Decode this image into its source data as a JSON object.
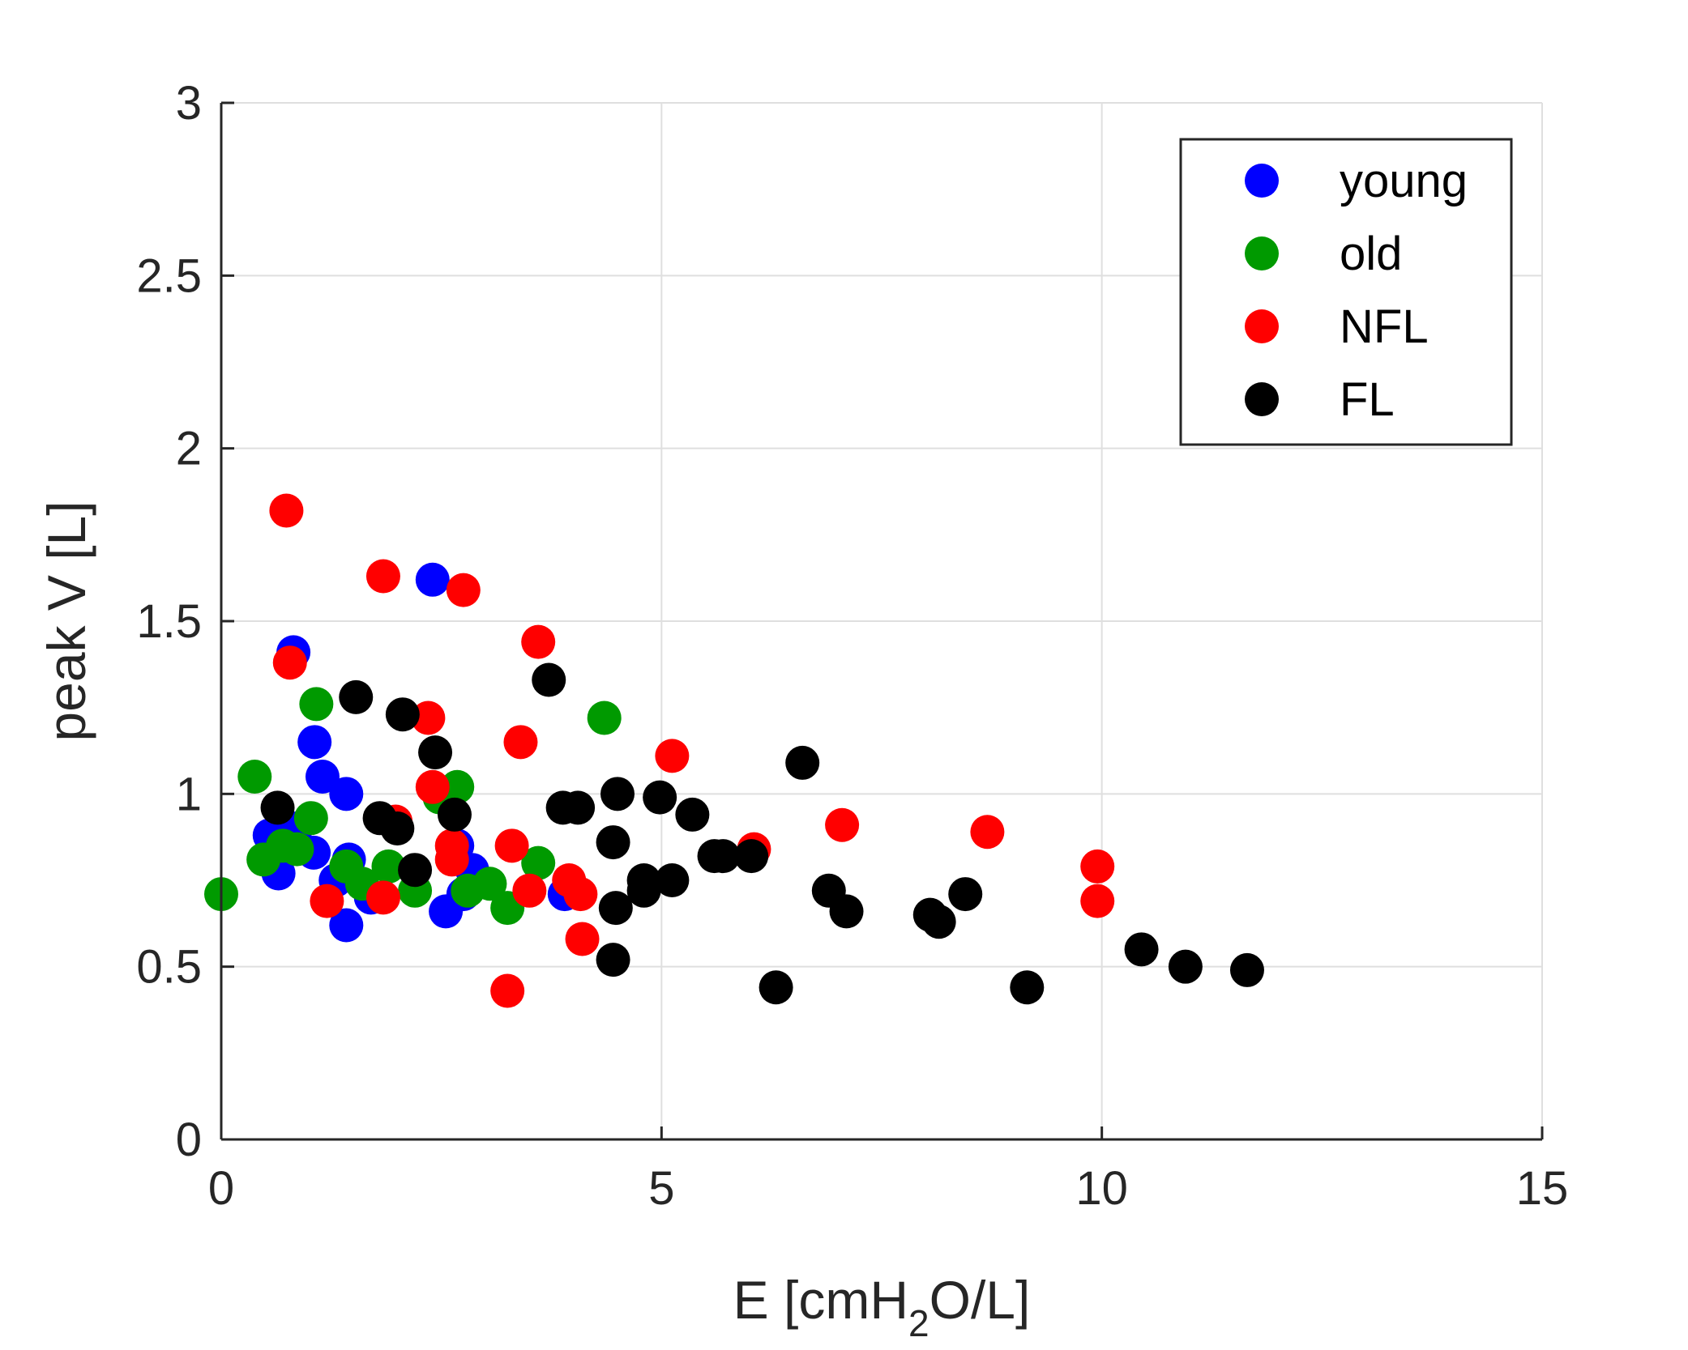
{
  "chart_data": {
    "type": "scatter",
    "xlabel": {
      "main": "E [cmH",
      "sub": "2",
      "tail": "O/L]"
    },
    "ylabel": "peak V [L]",
    "xlim": [
      0,
      15
    ],
    "ylim": [
      0,
      3
    ],
    "xticks": [
      0,
      5,
      10,
      15
    ],
    "xtick_labels": [
      "0",
      "5",
      "10",
      "15"
    ],
    "yticks": [
      0,
      0.5,
      1,
      1.5,
      2,
      2.5,
      3
    ],
    "ytick_labels": [
      "0",
      "0.5",
      "1",
      "1.5",
      "2",
      "2.5",
      "3"
    ],
    "grid": true,
    "legend_position": "top-right",
    "series": [
      {
        "name": "young",
        "color": "#0000FF",
        "points": [
          [
            2.4,
            1.62
          ],
          [
            0.82,
            1.41
          ],
          [
            1.06,
            1.15
          ],
          [
            1.15,
            1.05
          ],
          [
            1.42,
            1.0
          ],
          [
            0.55,
            0.88
          ],
          [
            0.85,
            0.9
          ],
          [
            1.05,
            0.83
          ],
          [
            0.65,
            0.77
          ],
          [
            1.45,
            0.81
          ],
          [
            1.3,
            0.75
          ],
          [
            1.7,
            0.7
          ],
          [
            1.42,
            0.62
          ],
          [
            2.68,
            0.85
          ],
          [
            2.85,
            0.78
          ],
          [
            2.75,
            0.71
          ],
          [
            2.55,
            0.66
          ],
          [
            3.9,
            0.71
          ]
        ]
      },
      {
        "name": "old",
        "color": "#009A00",
        "points": [
          [
            0.0,
            0.71
          ],
          [
            0.38,
            1.05
          ],
          [
            1.08,
            1.26
          ],
          [
            1.02,
            0.93
          ],
          [
            0.48,
            0.81
          ],
          [
            0.7,
            0.85
          ],
          [
            0.86,
            0.84
          ],
          [
            1.42,
            0.79
          ],
          [
            1.6,
            0.74
          ],
          [
            1.9,
            0.79
          ],
          [
            2.2,
            0.72
          ],
          [
            2.48,
            0.99
          ],
          [
            2.68,
            1.02
          ],
          [
            2.8,
            0.72
          ],
          [
            3.05,
            0.74
          ],
          [
            3.25,
            0.67
          ],
          [
            3.6,
            0.8
          ],
          [
            4.35,
            1.22
          ]
        ]
      },
      {
        "name": "NFL",
        "color": "#FF0000",
        "points": [
          [
            0.74,
            1.82
          ],
          [
            0.78,
            1.38
          ],
          [
            1.84,
            1.63
          ],
          [
            2.75,
            1.59
          ],
          [
            3.6,
            1.44
          ],
          [
            2.35,
            1.22
          ],
          [
            3.4,
            1.15
          ],
          [
            2.4,
            1.02
          ],
          [
            1.98,
            0.92
          ],
          [
            1.2,
            0.69
          ],
          [
            1.84,
            0.7
          ],
          [
            2.62,
            0.85
          ],
          [
            2.62,
            0.81
          ],
          [
            3.3,
            0.85
          ],
          [
            3.5,
            0.72
          ],
          [
            3.95,
            0.75
          ],
          [
            4.08,
            0.71
          ],
          [
            4.1,
            0.58
          ],
          [
            3.25,
            0.43
          ],
          [
            5.12,
            1.11
          ],
          [
            6.05,
            0.84
          ],
          [
            7.05,
            0.91
          ],
          [
            8.7,
            0.89
          ],
          [
            9.95,
            0.79
          ],
          [
            9.95,
            0.69
          ]
        ]
      },
      {
        "name": "FL",
        "color": "#000000",
        "points": [
          [
            1.53,
            1.28
          ],
          [
            2.06,
            1.23
          ],
          [
            2.43,
            1.12
          ],
          [
            3.72,
            1.33
          ],
          [
            0.64,
            0.96
          ],
          [
            1.8,
            0.93
          ],
          [
            2.0,
            0.9
          ],
          [
            2.65,
            0.94
          ],
          [
            2.2,
            0.78
          ],
          [
            3.88,
            0.96
          ],
          [
            4.05,
            0.96
          ],
          [
            4.5,
            1.0
          ],
          [
            4.98,
            0.99
          ],
          [
            5.35,
            0.94
          ],
          [
            4.45,
            0.86
          ],
          [
            4.8,
            0.75
          ],
          [
            4.8,
            0.72
          ],
          [
            5.12,
            0.75
          ],
          [
            4.48,
            0.67
          ],
          [
            4.45,
            0.52
          ],
          [
            5.6,
            0.82
          ],
          [
            5.7,
            0.82
          ],
          [
            6.02,
            0.82
          ],
          [
            6.6,
            1.09
          ],
          [
            6.9,
            0.72
          ],
          [
            7.1,
            0.66
          ],
          [
            6.3,
            0.44
          ],
          [
            8.05,
            0.65
          ],
          [
            8.15,
            0.63
          ],
          [
            8.45,
            0.71
          ],
          [
            9.15,
            0.44
          ],
          [
            10.45,
            0.55
          ],
          [
            10.95,
            0.5
          ],
          [
            11.65,
            0.49
          ]
        ]
      }
    ]
  }
}
